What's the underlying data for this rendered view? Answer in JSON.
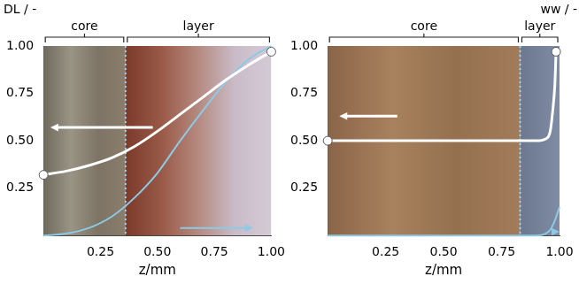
{
  "chart_data": [
    {
      "type": "line",
      "xlabel": "z/mm",
      "ylabel": "DL / -",
      "xlim": [
        0,
        1
      ],
      "ylim": [
        0,
        1
      ],
      "xticks": [
        0.25,
        {
          "value": 0.5,
          "label": "0.50"
        },
        0.75,
        {
          "value": 1,
          "label": "1.00"
        }
      ],
      "yticks": [
        0.25,
        {
          "value": 0.5,
          "label": "0.50"
        },
        0.75,
        {
          "value": 1,
          "label": "1.00"
        }
      ],
      "grid": false,
      "regions": [
        {
          "label": "core",
          "from": 0,
          "to": 0.36
        },
        {
          "label": "layer",
          "from": 0.36,
          "to": 1
        }
      ],
      "series": [
        {
          "color": "#ffffff",
          "marker": "circle",
          "x": [
            0,
            0.1,
            0.2,
            0.3,
            0.4,
            0.5,
            0.6,
            0.7,
            0.8,
            0.9,
            1.0
          ],
          "values": [
            0.32,
            0.34,
            0.37,
            0.41,
            0.47,
            0.55,
            0.64,
            0.73,
            0.82,
            0.9,
            0.97
          ]
        },
        {
          "color": "#8ecae6",
          "x": [
            0,
            0.1,
            0.2,
            0.3,
            0.4,
            0.5,
            0.6,
            0.7,
            0.8,
            0.9,
            1.0
          ],
          "values": [
            0,
            0.01,
            0.04,
            0.1,
            0.2,
            0.33,
            0.5,
            0.66,
            0.81,
            0.93,
            1.0
          ]
        }
      ]
    },
    {
      "type": "line",
      "xlabel": "z/mm",
      "ylabel": "ww / -",
      "xlim": [
        0,
        1
      ],
      "ylim": [
        0,
        1
      ],
      "xticks": [
        0.25,
        {
          "value": 0.5,
          "label": "0.50"
        },
        0.75,
        {
          "value": 1,
          "label": "1.00"
        }
      ],
      "yticks": [
        0.25,
        {
          "value": 0.5,
          "label": "0.50"
        },
        0.75,
        {
          "value": 1,
          "label": "1.00"
        }
      ],
      "grid": false,
      "regions": [
        {
          "label": "core",
          "from": 0,
          "to": 0.83
        },
        {
          "label": "layer",
          "from": 0.83,
          "to": 1
        }
      ],
      "series": [
        {
          "color": "#ffffff",
          "marker": "circle",
          "x": [
            0,
            0.2,
            0.4,
            0.6,
            0.8,
            0.9,
            0.94,
            0.96,
            0.97,
            0.98,
            0.985
          ],
          "values": [
            0.5,
            0.5,
            0.5,
            0.5,
            0.5,
            0.5,
            0.51,
            0.55,
            0.65,
            0.8,
            0.97
          ]
        },
        {
          "color": "#8ecae6",
          "x": [
            0,
            0.2,
            0.4,
            0.6,
            0.8,
            0.9,
            0.94,
            0.96,
            0.98,
            1.0
          ],
          "values": [
            0,
            0,
            0,
            0,
            0,
            0,
            0.01,
            0.03,
            0.08,
            0.15
          ]
        }
      ]
    }
  ]
}
